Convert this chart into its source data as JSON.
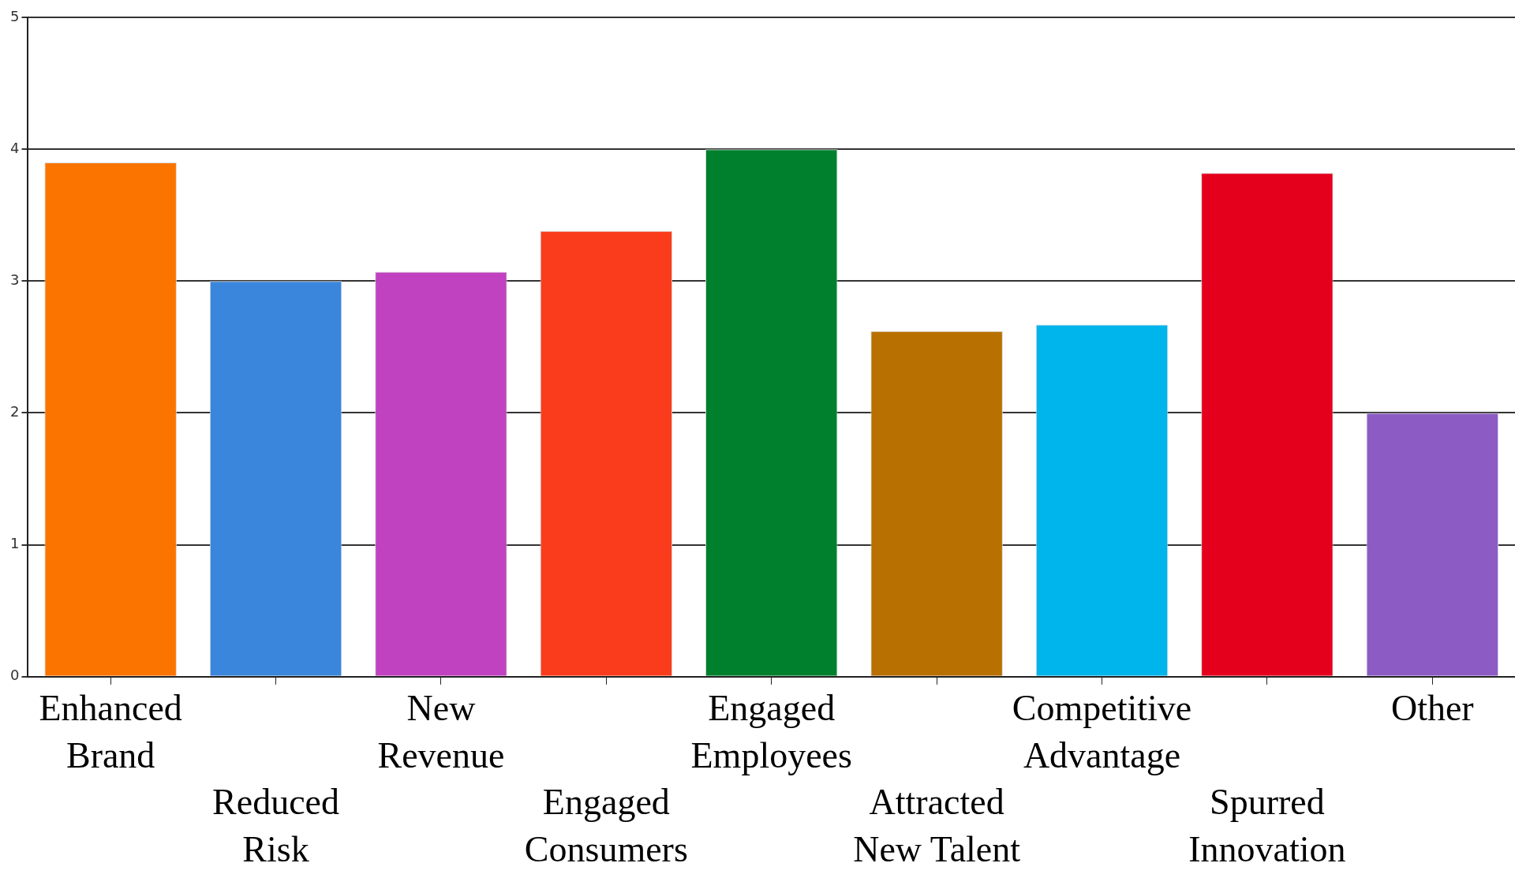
{
  "chart_data": {
    "type": "bar",
    "categories": [
      "Enhanced Brand",
      "Reduced Risk",
      "New Revenue",
      "Engaged Consumers",
      "Engaged Employees",
      "Attracted New Talent",
      "Competitive Advantage",
      "Spurred Innovation",
      "Other"
    ],
    "values": [
      3.9,
      3.0,
      3.07,
      3.38,
      4.0,
      2.62,
      2.67,
      3.82,
      2.0
    ],
    "colors": [
      "#fb7400",
      "#3a86dc",
      "#c042c0",
      "#fb3c1c",
      "#00802c",
      "#b87000",
      "#00b4ec",
      "#e4001c",
      "#8c5cc4"
    ],
    "ylim": [
      0,
      5
    ],
    "yticks": [
      0,
      1,
      2,
      3,
      4,
      5
    ],
    "grid": "y",
    "legend": false
  }
}
